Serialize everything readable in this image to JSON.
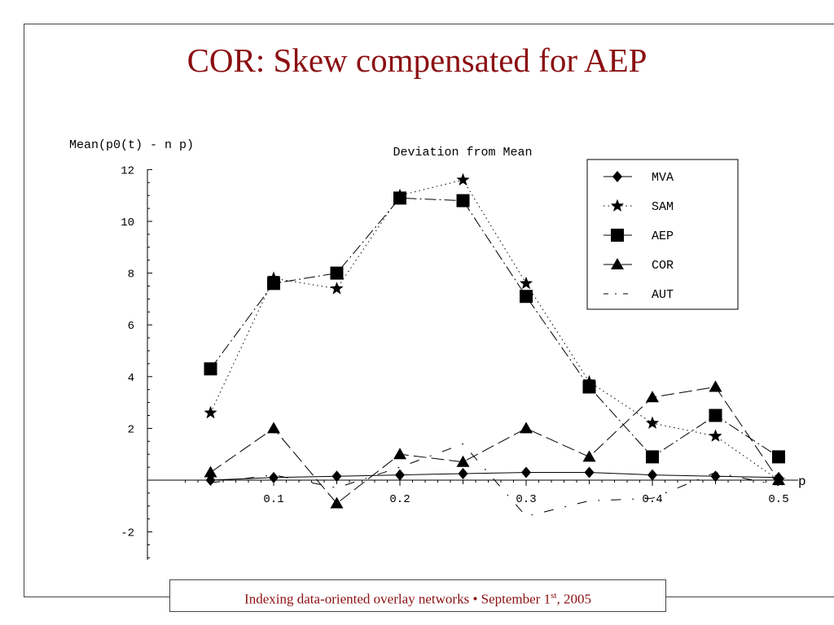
{
  "slide": {
    "title": "COR: Skew compensated for AEP",
    "footer_text": "Indexing data-oriented overlay networks • September 1",
    "footer_sup": "st",
    "footer_year": ", 2005"
  },
  "chart_data": {
    "type": "line",
    "title": "Deviation from Mean",
    "ylabel": "Mean(p0(t) - n p)",
    "xlabel": "p",
    "xlim": [
      0.02,
      0.52
    ],
    "ylim": [
      -3,
      12
    ],
    "x_ticks": [
      0.1,
      0.2,
      0.3,
      0.4,
      0.5
    ],
    "x_tick_labels": [
      "0.1",
      "0.2",
      "0.3",
      "0.4",
      "0.5"
    ],
    "y_ticks": [
      -2,
      2,
      4,
      6,
      8,
      10,
      12
    ],
    "y_tick_labels": [
      "-2",
      "2",
      "4",
      "6",
      "8",
      "10",
      "12"
    ],
    "legend_position": "top-right",
    "x": [
      0.05,
      0.1,
      0.15,
      0.2,
      0.25,
      0.3,
      0.35,
      0.4,
      0.45,
      0.5
    ],
    "series": [
      {
        "name": "MVA",
        "marker": "diamond",
        "line": "solid",
        "values": [
          0.0,
          0.1,
          0.15,
          0.2,
          0.25,
          0.3,
          0.3,
          0.2,
          0.15,
          0.1
        ]
      },
      {
        "name": "SAM",
        "marker": "star",
        "line": "dotted",
        "values": [
          2.6,
          7.8,
          7.4,
          11.0,
          11.6,
          7.6,
          3.8,
          2.2,
          1.7,
          0.0
        ]
      },
      {
        "name": "AEP",
        "marker": "square",
        "line": "dash-dot",
        "values": [
          4.3,
          7.6,
          8.0,
          10.9,
          10.8,
          7.1,
          3.6,
          0.9,
          2.5,
          0.9
        ]
      },
      {
        "name": "COR",
        "marker": "triangle",
        "line": "long-dash",
        "values": [
          0.3,
          2.0,
          -0.9,
          1.0,
          0.7,
          2.0,
          0.9,
          3.2,
          3.6,
          0.0
        ]
      },
      {
        "name": "AUT",
        "marker": "none",
        "line": "dash-dot-sparse",
        "values": [
          -0.1,
          0.2,
          -0.3,
          0.5,
          1.4,
          -1.4,
          -0.8,
          -0.7,
          0.3,
          -0.2
        ]
      }
    ]
  }
}
